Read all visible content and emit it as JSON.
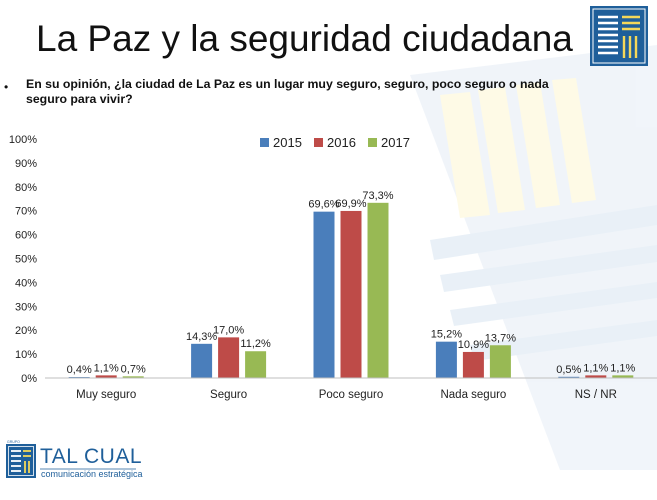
{
  "slide": {
    "title": "La Paz y la seguridad ciudadana",
    "bullet": "•",
    "question": "En su opinión, ¿la ciudad de La Paz es un lugar muy seguro, seguro, poco seguro o nada seguro para vivir?"
  },
  "brand": {
    "name": "TAL CUAL",
    "tagline": "comunicación estratégica",
    "logo_letters": "GRUPO",
    "primary_color": "#1f5f9a"
  },
  "chart_data": {
    "type": "bar",
    "title": "",
    "xlabel": "",
    "ylabel": "",
    "ylim": [
      0,
      100
    ],
    "yticks": [
      0,
      10,
      20,
      30,
      40,
      50,
      60,
      70,
      80,
      90,
      100
    ],
    "ytick_labels": [
      "0%",
      "10%",
      "20%",
      "30%",
      "40%",
      "50%",
      "60%",
      "70%",
      "80%",
      "90%",
      "100%"
    ],
    "grid": false,
    "legend_position": "top",
    "categories": [
      "Muy seguro",
      "Seguro",
      "Poco seguro",
      "Nada seguro",
      "NS / NR"
    ],
    "series": [
      {
        "name": "2015",
        "color": "#4a7ebb",
        "values": [
          0.4,
          14.3,
          69.6,
          15.2,
          0.5
        ],
        "labels": [
          "0,4%",
          "14,3%",
          "69,6%",
          "15,2%",
          "0,5%"
        ]
      },
      {
        "name": "2016",
        "color": "#be4b48",
        "values": [
          1.1,
          17.0,
          69.9,
          10.9,
          1.1
        ],
        "labels": [
          "1,1%",
          "17,0%",
          "69,9%",
          "10,9%",
          "1,1%"
        ]
      },
      {
        "name": "2017",
        "color": "#98b954",
        "values": [
          0.7,
          11.2,
          73.3,
          13.7,
          1.1
        ],
        "labels": [
          "0,7%",
          "11,2%",
          "73,3%",
          "13,7%",
          "1,1%"
        ]
      }
    ]
  }
}
